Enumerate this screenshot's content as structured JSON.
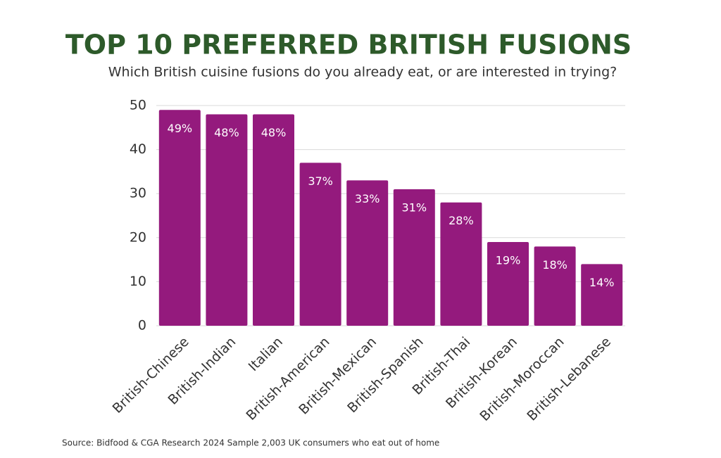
{
  "chart_data": {
    "type": "bar",
    "title": "TOP 10 PREFERRED BRITISH FUSIONS",
    "subtitle": "Which British cuisine fusions do you already eat, or are interested in trying?",
    "source": "Source: Bidfood & CGA Research 2024 Sample 2,003 UK consumers who eat out of home",
    "categories": [
      "British-Chinese",
      "British-Indian",
      "Italian",
      "British-American",
      "British-Mexican",
      "British-Spanish",
      "British-Thai",
      "British-Korean",
      "British-Moroccan",
      "British-Lebanese"
    ],
    "values": [
      49,
      48,
      48,
      37,
      33,
      31,
      28,
      19,
      18,
      14
    ],
    "value_labels": [
      "49%",
      "48%",
      "48%",
      "37%",
      "33%",
      "31%",
      "28%",
      "19%",
      "18%",
      "14%"
    ],
    "color": "#941a7d",
    "ylim": [
      0,
      50
    ],
    "yticks": [
      0,
      10,
      20,
      30,
      40,
      50
    ],
    "grid": true
  }
}
